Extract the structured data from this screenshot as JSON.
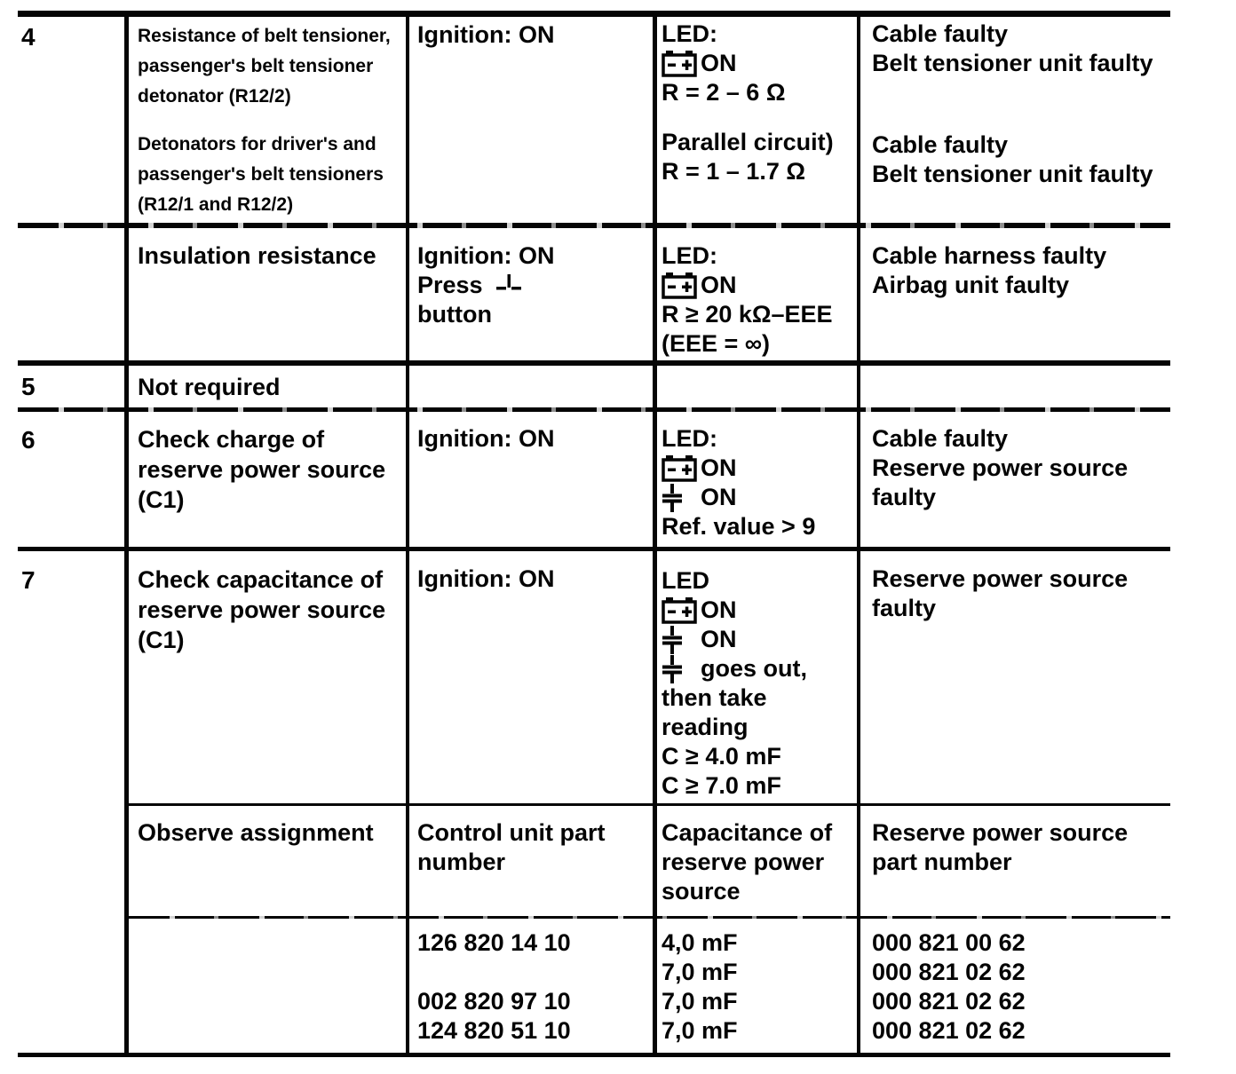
{
  "document": {
    "kind": "scanned diagnostic table",
    "ink_color": "#040404",
    "paper_color": "#ffffff"
  },
  "rows": {
    "r4": {
      "step": "4",
      "scope_p1": [
        "Resistance of belt tensioner,",
        "passenger's belt tensioner",
        "detonator (R12/2)"
      ],
      "scope_p2": [
        "Detonators for driver's and",
        "passenger's belt tensioners",
        "(R12/1 and R12/2)"
      ],
      "condition": "Ignition: ON",
      "led_label": "LED:",
      "battery_on": "ON",
      "r_value1": "R = 2 – 6 Ω",
      "parallel_label": "Parallel circuit)",
      "r_value2": "R = 1 – 1.7 Ω",
      "fault_p1": [
        "Cable faulty",
        "Belt tensioner unit faulty"
      ],
      "fault_p2": [
        "Cable faulty",
        "Belt tensioner unit faulty"
      ]
    },
    "insulation": {
      "scope": "Insulation resistance",
      "condition_l1": "Ignition: ON",
      "press_label": "Press",
      "button_label": "button",
      "led_label": "LED:",
      "battery_on": "ON",
      "r_value": "R ≥ 20 kΩ–EEE",
      "eee_note": "(EEE = ∞)",
      "fault": [
        "Cable harness faulty",
        "Airbag unit faulty"
      ]
    },
    "r5": {
      "step": "5",
      "scope": "Not required"
    },
    "r6": {
      "step": "6",
      "scope": [
        "Check charge of",
        "reserve power source",
        "(C1)"
      ],
      "condition": "Ignition: ON",
      "led_label": "LED:",
      "battery_on": "ON",
      "capacitor_on": "ON",
      "ref_value": "Ref. value > 9",
      "fault": [
        "Cable faulty",
        "Reserve power source",
        "faulty"
      ]
    },
    "r7": {
      "step": "7",
      "scope": [
        "Check capacitance of",
        "reserve power source",
        "(C1)"
      ],
      "condition": "Ignition: ON",
      "led_label": "LED",
      "battery_on": "ON",
      "capacitor_on": "ON",
      "capacitor_out": "goes out,",
      "after": [
        "then take",
        "reading",
        "C ≥ 4.0 mF",
        "C ≥ 7.0 mF"
      ],
      "fault": [
        "Reserve power source",
        "faulty"
      ]
    },
    "assignment": {
      "scope": "Observe assignment",
      "control_unit_header": [
        "Control unit part",
        "number"
      ],
      "capacitance_header": [
        "Capacitance of",
        "reserve power",
        "source"
      ],
      "part_number_header": [
        "Reserve power source",
        "part number"
      ]
    },
    "parts": {
      "control_unit_numbers": [
        "126 820 14 10",
        "",
        "002 820 97 10",
        "124 820 51 10"
      ],
      "capacitance_values": [
        "4,0 mF",
        "7,0 mF",
        "7,0 mF",
        "7,0 mF"
      ],
      "part_numbers": [
        "000 821 00 62",
        "000 821 02 62",
        "000 821 02 62",
        "000 821 02 62"
      ]
    }
  }
}
